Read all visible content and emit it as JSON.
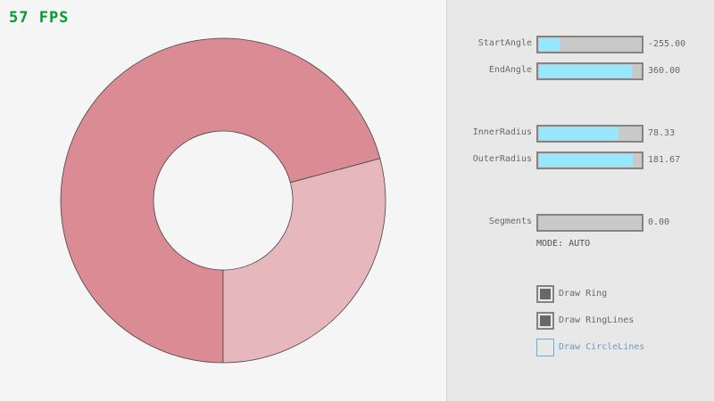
{
  "fps": "57 FPS",
  "colors": {
    "ring_dark": "#db8b94",
    "ring_light": "#e6b8bd",
    "slider_fill": "#97e8ff"
  },
  "sliders": [
    {
      "label": "StartAngle",
      "value": "-255.00",
      "fill": 0.2
    },
    {
      "label": "EndAngle",
      "value": "360.00",
      "fill": 0.91
    },
    {
      "label": "InnerRadius",
      "value": "78.33",
      "fill": 0.78
    },
    {
      "label": "OuterRadius",
      "value": "181.67",
      "fill": 0.92
    },
    {
      "label": "Segments",
      "value": "0.00",
      "fill": 0
    }
  ],
  "mode": "MODE: AUTO",
  "checkboxes": [
    {
      "label": "Draw Ring",
      "checked": true
    },
    {
      "label": "Draw RingLines",
      "checked": true
    },
    {
      "label": "Draw CircleLines",
      "checked": false
    }
  ]
}
